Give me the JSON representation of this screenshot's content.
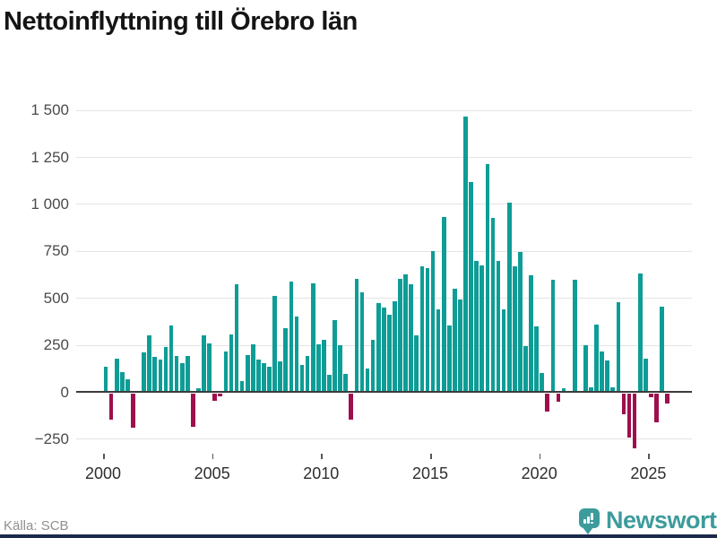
{
  "title": "Nettoinflyttning till Örebro län",
  "footer": {
    "source": "Källa: SCB",
    "brand_name": "Newsworthy"
  },
  "chart_data": {
    "type": "bar",
    "title": "Nettoinflyttning till Örebro län",
    "frequency": "quarterly",
    "start_year": 2000,
    "values": [
      135,
      -140,
      175,
      103,
      65,
      -180,
      0,
      210,
      300,
      185,
      170,
      240,
      355,
      193,
      155,
      190,
      -175,
      20,
      300,
      260,
      -37,
      -15,
      215,
      305,
      575,
      58,
      196,
      253,
      171,
      152,
      136,
      509,
      164,
      341,
      587,
      400,
      145,
      193,
      577,
      252,
      278,
      91,
      381,
      249,
      95,
      -136,
      602,
      529,
      123,
      275,
      473,
      449,
      409,
      481,
      601,
      623,
      575,
      301,
      668,
      659,
      751,
      441,
      932,
      351,
      549,
      492,
      1465,
      1116,
      697,
      675,
      1213,
      924,
      697,
      438,
      1009,
      668,
      743,
      245,
      620,
      350,
      100,
      -95,
      595,
      -43,
      20,
      0,
      595,
      0,
      246,
      24,
      357,
      214,
      167,
      24,
      476,
      -111,
      -232,
      -289,
      630,
      176,
      -19,
      -151,
      455,
      -51
    ],
    "x_tick_labels": [
      "2000",
      "2005",
      "2010",
      "2015",
      "2020",
      "2025"
    ],
    "x_tick_years": [
      2000,
      2005,
      2010,
      2015,
      2020,
      2025
    ],
    "y_tick_labels": [
      "1 500",
      "1 250",
      "1 000",
      "750",
      "500",
      "250",
      "0",
      "−250"
    ],
    "y_tick_values": [
      1500,
      1250,
      1000,
      750,
      500,
      250,
      0,
      -250
    ],
    "ylim": [
      -330,
      1560
    ],
    "grid": true,
    "legend": false,
    "positive_color": "#0e9d96",
    "negative_color": "#9e0f4d"
  }
}
